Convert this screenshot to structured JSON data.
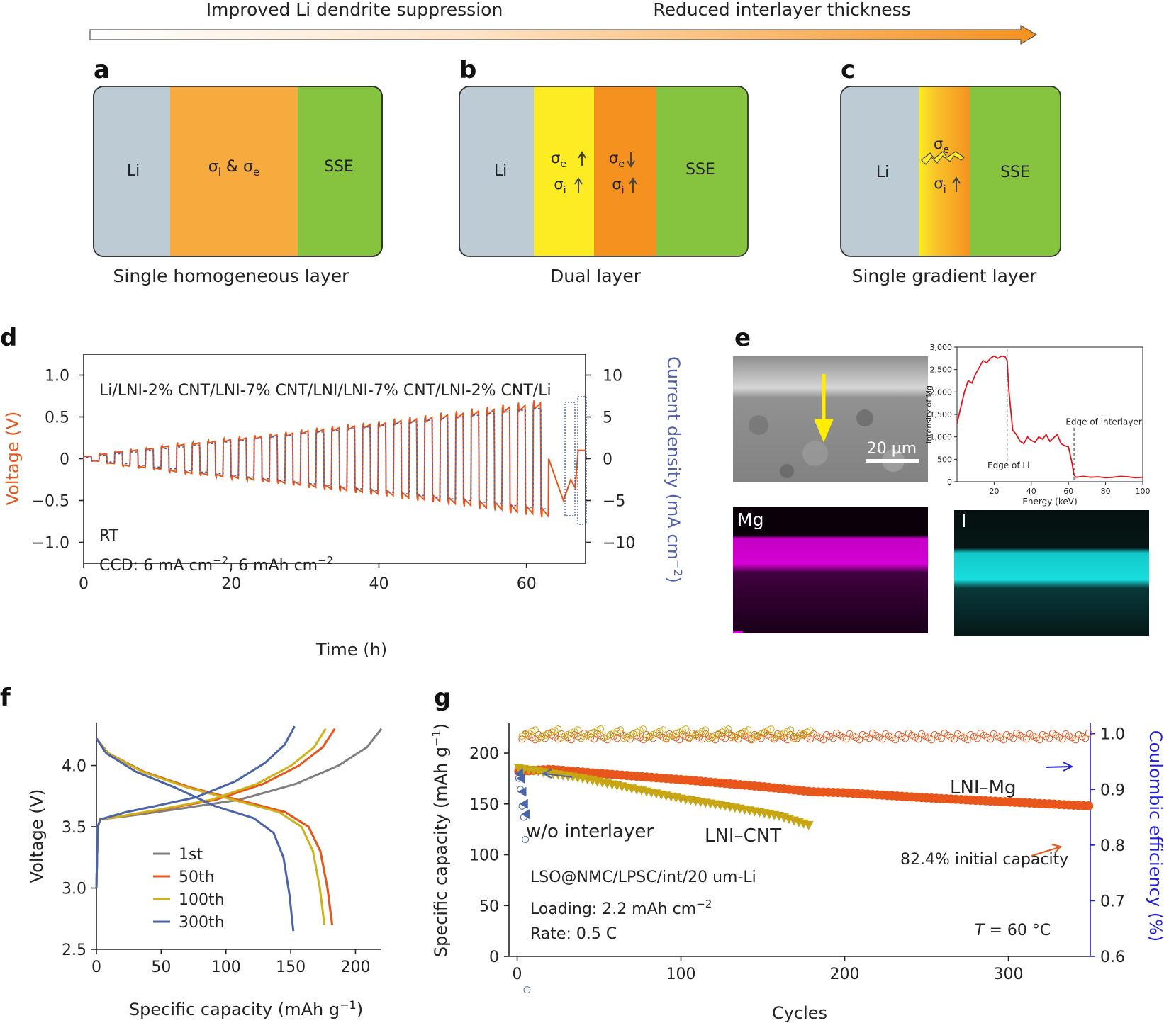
{
  "colors": {
    "li": "#bccbd4",
    "sse": "#86c33f",
    "homog": "#f7ab3e",
    "yellow": "#fcec21",
    "orange": "#f5921f",
    "voltage": "#e8561b",
    "current": "#4f5fa8",
    "mg_map": "#d400d4",
    "i_map": "#16d8d8",
    "eds": "#e0161c",
    "cycle50": "#e8561b",
    "cycle100": "#cdb21a",
    "cycle300": "#4a64a8",
    "cycle1": "#808080",
    "lnimg": "#e8561b",
    "lnicnt": "#c8a512",
    "wo": "#4a64a8",
    "ce_axis": "#1f1fd6"
  },
  "top": {
    "left_caption": "Improved Li dendrite suppression",
    "right_caption": "Reduced interlayer thickness"
  },
  "panels": {
    "a": {
      "label": "a",
      "li": "Li",
      "mid": "σ",
      "mid_sub1": "i",
      "mid_amp": " & σ",
      "mid_sub2": "e",
      "sse": "SSE",
      "caption": "Single homogeneous layer"
    },
    "b": {
      "label": "b",
      "li": "Li",
      "sig": "σ",
      "sub_e": "e",
      "sub_i": "i",
      "sse": "SSE",
      "caption": "Dual layer"
    },
    "c": {
      "label": "c",
      "li": "Li",
      "sig": "σ",
      "sub_e": "e",
      "sub_i": "i",
      "sse": "SSE",
      "caption": "Single gradient layer"
    },
    "d": {
      "label": "d",
      "title": "Li/LNI-2% CNT/LNI-7% CNT/LNI/LNI-7% CNT/LNI-2% CNT/Li",
      "rt": "RT",
      "ccd_prefix": "CCD: 6 mA cm",
      "ccd_sup1": "−2",
      "ccd_mid": ", 6 mAh cm",
      "ccd_sup2": "−2",
      "xlabel": "Time (h)",
      "ylabel": "Voltage (V)",
      "y2label_main": "Current density (mA cm",
      "y2label_sup": "−2",
      "y2label_end": ")"
    },
    "e": {
      "label": "e",
      "scalebar": "20 µm",
      "mg": "Mg",
      "i": "I",
      "xlabel": "Energy (keV)",
      "ylabel": "Intensity of Mg",
      "edge_li": "Edge of Li",
      "edge_int": "Edge of interlayer"
    },
    "f": {
      "label": "f",
      "xlabel_main": "Specific capacity (mAh g",
      "xlabel_sup": "−1",
      "xlabel_end": ")",
      "ylabel": "Voltage (V)"
    },
    "g": {
      "label": "g",
      "ylabel_main": "Specific capacity (mAh g",
      "ylabel_sup": "−1",
      "ylabel_end": ")",
      "y2label": "Coulombic efficiency (%)",
      "xlabel": "Cycles",
      "lnimg": "LNI–Mg",
      "lnicnt": "LNI–CNT",
      "wo": "w/o interlayer",
      "retention": "82.4% initial capacity",
      "config": "LSO@NMC/LPSC/int/20 um-Li",
      "loading_prefix": "Loading: 2.2 mAh cm",
      "loading_sup": "−2",
      "rate": "Rate: 0.5 C",
      "temp_t": "T",
      "temp_rest": " = 60 °C"
    }
  },
  "chart_data": [
    {
      "id": "d",
      "type": "line",
      "x_ticks": [
        0,
        20,
        40,
        60
      ],
      "xlim": [
        0,
        68
      ],
      "y_ticks": [
        1.0,
        0.5,
        0,
        -0.5,
        -1.0
      ],
      "y_tick_labels": [
        "1.0",
        "0.5",
        "0",
        "−0.5",
        "−1.0"
      ],
      "ylim": [
        -1.25,
        1.25
      ],
      "y2_ticks": [
        10,
        5,
        0,
        -5,
        -10
      ],
      "y2_tick_labels": [
        "10",
        "5",
        "0",
        "−5",
        "−10"
      ],
      "y2lim": [
        -12.5,
        12.5
      ],
      "step_current_mA_cm2": [
        0.2,
        0.4,
        0.6,
        0.8,
        1.0,
        1.2,
        1.4,
        1.6,
        1.8,
        2.0,
        2.2,
        2.4,
        2.6,
        2.8,
        3.0,
        3.2,
        3.4,
        3.6,
        3.8,
        4.0,
        4.2,
        4.4,
        4.6,
        4.8,
        5.0,
        5.2,
        5.4,
        5.6,
        5.8,
        6.0
      ],
      "step_duration_h": 2.1,
      "series": [
        {
          "name": "Voltage",
          "axis": "left",
          "peak_voltage_V": [
            0.03,
            0.06,
            0.09,
            0.11,
            0.13,
            0.16,
            0.18,
            0.2,
            0.22,
            0.24,
            0.26,
            0.28,
            0.3,
            0.32,
            0.35,
            0.37,
            0.39,
            0.41,
            0.43,
            0.45,
            0.48,
            0.5,
            0.52,
            0.55,
            0.57,
            0.6,
            0.62,
            0.65,
            0.67,
            0.7
          ]
        },
        {
          "name": "Current density",
          "axis": "right"
        }
      ]
    },
    {
      "id": "e",
      "type": "line",
      "x_ticks": [
        20,
        40,
        60,
        80,
        100
      ],
      "xlim": [
        0,
        100
      ],
      "y_ticks": [
        0,
        500,
        1000,
        1500,
        2000,
        2500,
        3000
      ],
      "y_tick_labels": [
        "0",
        "500",
        "1,000",
        "1,500",
        "2,000",
        "2,500",
        "3,000"
      ],
      "ylim": [
        0,
        3000
      ],
      "edge_li_x": 27,
      "edge_interlayer_x": 63,
      "series": [
        {
          "x": [
            0,
            2,
            4,
            6,
            8,
            10,
            12,
            14,
            16,
            18,
            20,
            22,
            24,
            26,
            27,
            28,
            30,
            32,
            34,
            36,
            38,
            40,
            42,
            44,
            46,
            48,
            50,
            52,
            54,
            56,
            58,
            60,
            62,
            63,
            64,
            68,
            72,
            76,
            80,
            84,
            88,
            92,
            96,
            100
          ],
          "y": [
            1300,
            1650,
            2000,
            2250,
            2200,
            2400,
            2550,
            2700,
            2650,
            2750,
            2800,
            2750,
            2800,
            2780,
            2700,
            2000,
            1150,
            1050,
            900,
            850,
            1000,
            920,
            880,
            1000,
            950,
            1050,
            900,
            980,
            1050,
            850,
            800,
            780,
            400,
            150,
            100,
            120,
            100,
            110,
            90,
            100,
            120,
            110,
            90,
            100
          ]
        }
      ]
    },
    {
      "id": "f",
      "type": "line",
      "x_ticks": [
        0,
        50,
        100,
        150,
        200
      ],
      "xlim": [
        0,
        220
      ],
      "y_ticks": [
        2.5,
        3.0,
        3.5,
        4.0
      ],
      "y_tick_labels": [
        "2.5",
        "3.0",
        "3.5",
        "4.0"
      ],
      "ylim": [
        2.5,
        4.35
      ],
      "series": [
        {
          "name": "1st",
          "charge_capacity": 220,
          "discharge_capacity": 182
        },
        {
          "name": "50th",
          "charge_capacity": 184,
          "discharge_capacity": 182
        },
        {
          "name": "100th",
          "charge_capacity": 177,
          "discharge_capacity": 176
        },
        {
          "name": "300th",
          "charge_capacity": 153,
          "discharge_capacity": 152
        }
      ]
    },
    {
      "id": "g",
      "type": "scatter",
      "x_ticks": [
        0,
        100,
        200,
        300
      ],
      "xlim": [
        -5,
        350
      ],
      "y_ticks": [
        0,
        50,
        100,
        150,
        200
      ],
      "ylim": [
        0,
        230
      ],
      "y2_ticks": [
        0.6,
        0.7,
        0.8,
        0.9,
        1.0
      ],
      "y2_tick_labels": [
        "0.6",
        "0.7",
        "0.8",
        "0.9",
        "1.0"
      ],
      "y2lim": [
        0.6,
        1.02
      ],
      "series": [
        {
          "name": "LNI–Mg",
          "x": [
            1,
            20,
            50,
            100,
            150,
            180,
            200,
            250,
            300,
            350
          ],
          "y": [
            182,
            184,
            180,
            174,
            167,
            162,
            161,
            156,
            152,
            148
          ]
        },
        {
          "name": "LNI–CNT",
          "x": [
            1,
            20,
            40,
            70,
            100,
            130,
            160,
            180
          ],
          "y": [
            185,
            180,
            175,
            165,
            155,
            147,
            138,
            128
          ]
        },
        {
          "name": "w/o interlayer",
          "x": [
            1,
            2,
            3,
            4,
            5
          ],
          "y": [
            180,
            175,
            162,
            150,
            140
          ]
        }
      ]
    }
  ]
}
